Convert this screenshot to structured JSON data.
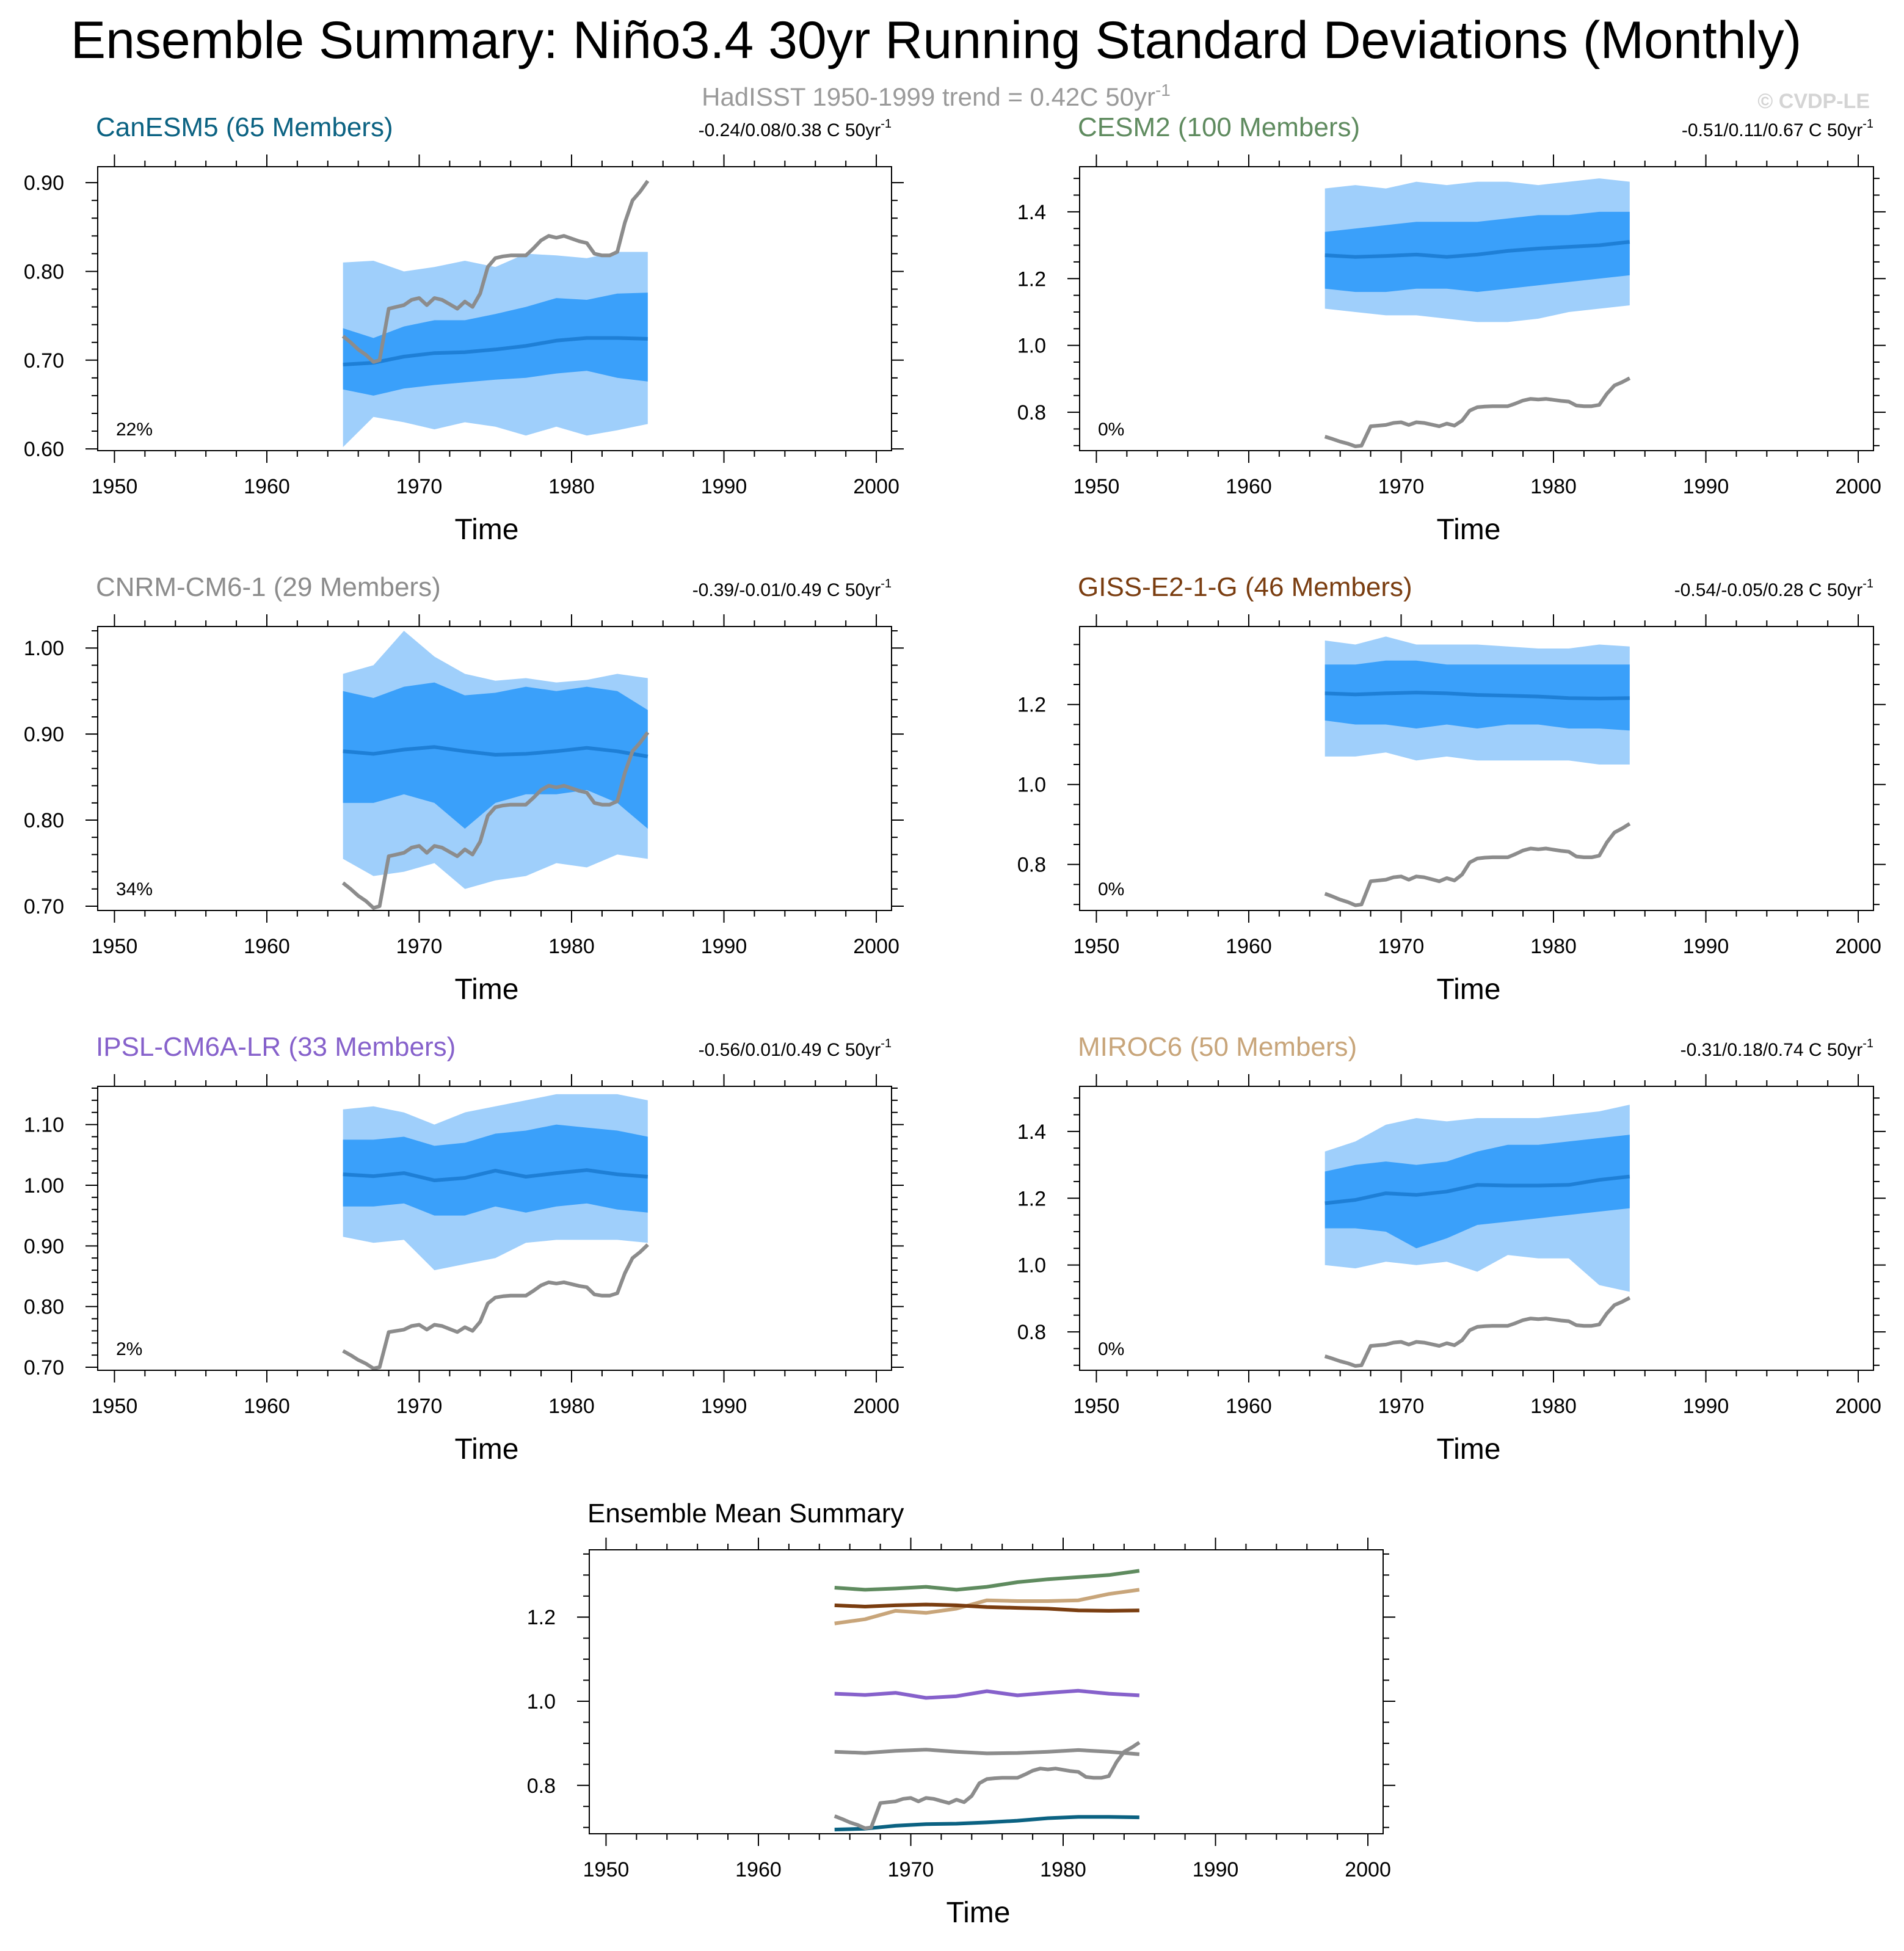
{
  "title": "Ensemble Summary: Niño3.4 30yr Running Standard Deviations (Monthly)",
  "subtitle": {
    "text": "HadISST 1950-1999 trend = 0.42C 50yr",
    "sup": "-1",
    "color": "#9a9a9a"
  },
  "watermark": "© CVDP-LE",
  "colors": {
    "outer_band": "#9fcffb",
    "inner_band": "#3aa0fa",
    "ens_mean": "#1e7fd6",
    "obs": "#8c8c8c"
  },
  "xlabel": "Time",
  "chart_data": [
    {
      "type": "area",
      "name": "CanESM5 (65 Members)",
      "title_color": "#0b6282",
      "trend": "-0.24/0.08/0.38 C 50yr",
      "trend_sup": "-1",
      "percent": "22%",
      "xlim": [
        1948.9,
        2001.0
      ],
      "ylim": [
        0.598,
        0.918
      ],
      "yticks": [
        0.6,
        0.7,
        0.8,
        0.9
      ],
      "ytick_labels": [
        "0.60",
        "0.70",
        "0.80",
        "0.90"
      ],
      "yminor_step": 0.02,
      "xticks": [
        1950,
        1960,
        1970,
        1980,
        1990,
        2000
      ],
      "xtick_labels": [
        "1950",
        "1960",
        "1970",
        "1980",
        "1990",
        "2000"
      ],
      "x": [
        1965,
        1967,
        1969,
        1971,
        1973,
        1975,
        1977,
        1979,
        1981,
        1983,
        1985
      ],
      "mean": [
        0.695,
        0.697,
        0.704,
        0.708,
        0.709,
        0.712,
        0.716,
        0.722,
        0.725,
        0.725,
        0.724
      ],
      "p10": [
        0.667,
        0.66,
        0.668,
        0.672,
        0.675,
        0.678,
        0.68,
        0.685,
        0.688,
        0.68,
        0.676
      ],
      "p90": [
        0.736,
        0.725,
        0.738,
        0.745,
        0.745,
        0.752,
        0.76,
        0.77,
        0.768,
        0.775,
        0.776
      ],
      "pmin": [
        0.602,
        0.636,
        0.63,
        0.622,
        0.63,
        0.625,
        0.615,
        0.625,
        0.615,
        0.621,
        0.628
      ],
      "pmax": [
        0.81,
        0.812,
        0.8,
        0.805,
        0.812,
        0.805,
        0.82,
        0.818,
        0.815,
        0.822,
        0.822
      ]
    },
    {
      "type": "area",
      "name": "CESM2 (100 Members)",
      "title_color": "#5f8b5f",
      "trend": "-0.51/0.11/0.67 C 50yr",
      "trend_sup": "-1",
      "percent": "0%",
      "xlim": [
        1948.9,
        2001.0
      ],
      "ylim": [
        0.685,
        1.535
      ],
      "yticks": [
        0.8,
        1.0,
        1.2,
        1.4
      ],
      "ytick_labels": [
        "0.8",
        "1.0",
        "1.2",
        "1.4"
      ],
      "yminor_step": 0.05,
      "xticks": [
        1950,
        1960,
        1970,
        1980,
        1990,
        2000
      ],
      "xtick_labels": [
        "1950",
        "1960",
        "1970",
        "1980",
        "1990",
        "2000"
      ],
      "x": [
        1965,
        1967,
        1969,
        1971,
        1973,
        1975,
        1977,
        1979,
        1981,
        1983,
        1985
      ],
      "mean": [
        1.27,
        1.265,
        1.268,
        1.272,
        1.265,
        1.272,
        1.283,
        1.29,
        1.295,
        1.3,
        1.31
      ],
      "p10": [
        1.17,
        1.16,
        1.16,
        1.17,
        1.17,
        1.16,
        1.17,
        1.18,
        1.19,
        1.2,
        1.21
      ],
      "p90": [
        1.34,
        1.35,
        1.36,
        1.37,
        1.37,
        1.37,
        1.38,
        1.39,
        1.39,
        1.4,
        1.4
      ],
      "pmin": [
        1.11,
        1.1,
        1.09,
        1.09,
        1.08,
        1.07,
        1.07,
        1.08,
        1.1,
        1.11,
        1.12
      ],
      "pmax": [
        1.47,
        1.48,
        1.47,
        1.49,
        1.48,
        1.49,
        1.49,
        1.48,
        1.49,
        1.5,
        1.49
      ]
    },
    {
      "type": "area",
      "name": "CNRM-CM6-1 (29 Members)",
      "title_color": "#8c8c8c",
      "trend": "-0.39/-0.01/0.49 C 50yr",
      "trend_sup": "-1",
      "percent": "34%",
      "xlim": [
        1948.9,
        2001.0
      ],
      "ylim": [
        0.695,
        1.025
      ],
      "yticks": [
        0.7,
        0.8,
        0.9,
        1.0
      ],
      "ytick_labels": [
        "0.70",
        "0.80",
        "0.90",
        "1.00"
      ],
      "yminor_step": 0.02,
      "xticks": [
        1950,
        1960,
        1970,
        1980,
        1990,
        2000
      ],
      "xtick_labels": [
        "1950",
        "1960",
        "1970",
        "1980",
        "1990",
        "2000"
      ],
      "x": [
        1965,
        1967,
        1969,
        1971,
        1973,
        1975,
        1977,
        1979,
        1981,
        1983,
        1985
      ],
      "mean": [
        0.88,
        0.877,
        0.882,
        0.885,
        0.88,
        0.876,
        0.877,
        0.88,
        0.884,
        0.88,
        0.874
      ],
      "p10": [
        0.82,
        0.82,
        0.83,
        0.82,
        0.79,
        0.82,
        0.83,
        0.83,
        0.835,
        0.82,
        0.79
      ],
      "p90": [
        0.95,
        0.942,
        0.955,
        0.96,
        0.945,
        0.948,
        0.955,
        0.95,
        0.955,
        0.95,
        0.928
      ],
      "pmin": [
        0.755,
        0.735,
        0.74,
        0.75,
        0.72,
        0.73,
        0.735,
        0.75,
        0.745,
        0.76,
        0.755
      ],
      "pmax": [
        0.97,
        0.98,
        1.02,
        0.99,
        0.97,
        0.962,
        0.965,
        0.96,
        0.963,
        0.97,
        0.965
      ]
    },
    {
      "type": "area",
      "name": "GISS-E2-1-G (46 Members)",
      "title_color": "#7a3d10",
      "trend": "-0.54/-0.05/0.28 C 50yr",
      "trend_sup": "-1",
      "percent": "0%",
      "xlim": [
        1948.9,
        2001.0
      ],
      "ylim": [
        0.685,
        1.395
      ],
      "yticks": [
        0.8,
        1.0,
        1.2
      ],
      "ytick_labels": [
        "0.8",
        "1.0",
        "1.2"
      ],
      "yminor_step": 0.05,
      "xticks": [
        1950,
        1960,
        1970,
        1980,
        1990,
        2000
      ],
      "xtick_labels": [
        "1950",
        "1960",
        "1970",
        "1980",
        "1990",
        "2000"
      ],
      "x": [
        1965,
        1967,
        1969,
        1971,
        1973,
        1975,
        1977,
        1979,
        1981,
        1983,
        1985
      ],
      "mean": [
        1.228,
        1.225,
        1.228,
        1.23,
        1.228,
        1.224,
        1.222,
        1.22,
        1.216,
        1.215,
        1.216
      ],
      "p10": [
        1.16,
        1.15,
        1.15,
        1.14,
        1.15,
        1.14,
        1.15,
        1.15,
        1.14,
        1.14,
        1.135
      ],
      "p90": [
        1.3,
        1.3,
        1.31,
        1.31,
        1.3,
        1.3,
        1.3,
        1.3,
        1.3,
        1.3,
        1.3
      ],
      "pmin": [
        1.07,
        1.07,
        1.08,
        1.06,
        1.07,
        1.06,
        1.06,
        1.06,
        1.06,
        1.05,
        1.05
      ],
      "pmax": [
        1.36,
        1.35,
        1.37,
        1.35,
        1.35,
        1.35,
        1.345,
        1.34,
        1.34,
        1.35,
        1.345
      ]
    },
    {
      "type": "area",
      "name": "IPSL-CM6A-LR (33 Members)",
      "title_color": "#8661cb",
      "trend": "-0.56/0.01/0.49 C 50yr",
      "trend_sup": "-1",
      "percent": "2%",
      "xlim": [
        1948.9,
        2001.0
      ],
      "ylim": [
        0.695,
        1.163
      ],
      "yticks": [
        0.7,
        0.8,
        0.9,
        1.0,
        1.1
      ],
      "ytick_labels": [
        "0.70",
        "0.80",
        "0.90",
        "1.00",
        "1.10"
      ],
      "yminor_step": 0.02,
      "xticks": [
        1950,
        1960,
        1970,
        1980,
        1990,
        2000
      ],
      "xtick_labels": [
        "1950",
        "1960",
        "1970",
        "1980",
        "1990",
        "2000"
      ],
      "x": [
        1965,
        1967,
        1969,
        1971,
        1973,
        1975,
        1977,
        1979,
        1981,
        1983,
        1985
      ],
      "mean": [
        1.018,
        1.015,
        1.02,
        1.008,
        1.012,
        1.024,
        1.014,
        1.02,
        1.025,
        1.018,
        1.014
      ],
      "p10": [
        0.965,
        0.965,
        0.97,
        0.95,
        0.95,
        0.965,
        0.955,
        0.965,
        0.97,
        0.96,
        0.955
      ],
      "p90": [
        1.075,
        1.075,
        1.08,
        1.065,
        1.07,
        1.085,
        1.09,
        1.1,
        1.095,
        1.09,
        1.08
      ],
      "pmin": [
        0.915,
        0.905,
        0.91,
        0.86,
        0.87,
        0.88,
        0.905,
        0.91,
        0.91,
        0.91,
        0.905
      ],
      "pmax": [
        1.125,
        1.13,
        1.12,
        1.1,
        1.12,
        1.13,
        1.14,
        1.15,
        1.15,
        1.15,
        1.14
      ]
    },
    {
      "type": "area",
      "name": "MIROC6 (50 Members)",
      "title_color": "#c8a57a",
      "trend": "-0.31/0.18/0.74 C 50yr",
      "trend_sup": "-1",
      "percent": "0%",
      "xlim": [
        1948.9,
        2001.0
      ],
      "ylim": [
        0.685,
        1.535
      ],
      "yticks": [
        0.8,
        1.0,
        1.2,
        1.4
      ],
      "ytick_labels": [
        "0.8",
        "1.0",
        "1.2",
        "1.4"
      ],
      "yminor_step": 0.05,
      "xticks": [
        1950,
        1960,
        1970,
        1980,
        1990,
        2000
      ],
      "xtick_labels": [
        "1950",
        "1960",
        "1970",
        "1980",
        "1990",
        "2000"
      ],
      "x": [
        1965,
        1967,
        1969,
        1971,
        1973,
        1975,
        1977,
        1979,
        1981,
        1983,
        1985
      ],
      "mean": [
        1.185,
        1.195,
        1.215,
        1.21,
        1.22,
        1.24,
        1.238,
        1.238,
        1.24,
        1.255,
        1.265
      ],
      "p10": [
        1.11,
        1.11,
        1.1,
        1.05,
        1.08,
        1.12,
        1.13,
        1.14,
        1.15,
        1.16,
        1.17
      ],
      "p90": [
        1.28,
        1.3,
        1.31,
        1.3,
        1.31,
        1.34,
        1.36,
        1.36,
        1.37,
        1.38,
        1.39
      ],
      "pmin": [
        1.0,
        0.99,
        1.01,
        1.0,
        1.01,
        0.98,
        1.03,
        1.02,
        1.02,
        0.94,
        0.92
      ],
      "pmax": [
        1.34,
        1.37,
        1.42,
        1.44,
        1.43,
        1.44,
        1.44,
        1.44,
        1.45,
        1.46,
        1.48
      ]
    },
    {
      "type": "line",
      "name": "Ensemble Mean Summary",
      "title_color": "#000000",
      "xlim": [
        1948.9,
        2001.0
      ],
      "ylim": [
        0.685,
        1.36
      ],
      "yticks": [
        0.8,
        1.0,
        1.2
      ],
      "ytick_labels": [
        "0.8",
        "1.0",
        "1.2"
      ],
      "yminor_step": 0.05,
      "xticks": [
        1950,
        1960,
        1970,
        1980,
        1990,
        2000
      ],
      "xtick_labels": [
        "1950",
        "1960",
        "1970",
        "1980",
        "1990",
        "2000"
      ],
      "x": [
        1965,
        1967,
        1969,
        1971,
        1973,
        1975,
        1977,
        1979,
        1981,
        1983,
        1985
      ],
      "series": [
        {
          "name": "CESM2",
          "color": "#5f8b5f",
          "values": [
            1.27,
            1.265,
            1.268,
            1.272,
            1.265,
            1.272,
            1.283,
            1.29,
            1.295,
            1.3,
            1.31
          ]
        },
        {
          "name": "MIROC6",
          "color": "#c8a57a",
          "values": [
            1.185,
            1.195,
            1.215,
            1.21,
            1.22,
            1.24,
            1.238,
            1.238,
            1.24,
            1.255,
            1.265
          ]
        },
        {
          "name": "GISS-E2-1-G",
          "color": "#7a3d10",
          "values": [
            1.228,
            1.225,
            1.228,
            1.23,
            1.228,
            1.224,
            1.222,
            1.22,
            1.216,
            1.215,
            1.216
          ]
        },
        {
          "name": "IPSL-CM6A-LR",
          "color": "#8661cb",
          "values": [
            1.018,
            1.015,
            1.02,
            1.008,
            1.012,
            1.024,
            1.014,
            1.02,
            1.025,
            1.018,
            1.014
          ]
        },
        {
          "name": "CNRM-CM6-1",
          "color": "#8c8c8c",
          "values": [
            0.88,
            0.877,
            0.882,
            0.885,
            0.88,
            0.876,
            0.877,
            0.88,
            0.884,
            0.88,
            0.874
          ]
        },
        {
          "name": "CanESM5",
          "color": "#0b6282",
          "values": [
            0.695,
            0.697,
            0.704,
            0.708,
            0.709,
            0.712,
            0.716,
            0.722,
            0.725,
            0.725,
            0.724
          ]
        }
      ]
    }
  ],
  "observations": {
    "name": "HadISST",
    "x": [
      1965,
      1965.5,
      1966,
      1966.5,
      1967,
      1967.4,
      1968,
      1968.5,
      1969,
      1969.5,
      1970,
      1970.5,
      1971,
      1971.5,
      1972,
      1972.5,
      1973,
      1973.5,
      1974,
      1974.5,
      1975,
      1975.5,
      1976,
      1976.5,
      1977,
      1977.5,
      1978,
      1978.5,
      1979,
      1979.5,
      1980,
      1980.5,
      1981,
      1981.5,
      1982,
      1982.5,
      1983,
      1983.5,
      1984,
      1984.5,
      1985
    ],
    "values": [
      0.727,
      0.72,
      0.712,
      0.706,
      0.698,
      0.7,
      0.758,
      0.76,
      0.762,
      0.768,
      0.77,
      0.762,
      0.77,
      0.768,
      0.763,
      0.758,
      0.766,
      0.76,
      0.775,
      0.805,
      0.815,
      0.817,
      0.818,
      0.818,
      0.818,
      0.826,
      0.835,
      0.84,
      0.838,
      0.84,
      0.837,
      0.834,
      0.832,
      0.82,
      0.818,
      0.818,
      0.822,
      0.855,
      0.88,
      0.89,
      0.902
    ]
  }
}
